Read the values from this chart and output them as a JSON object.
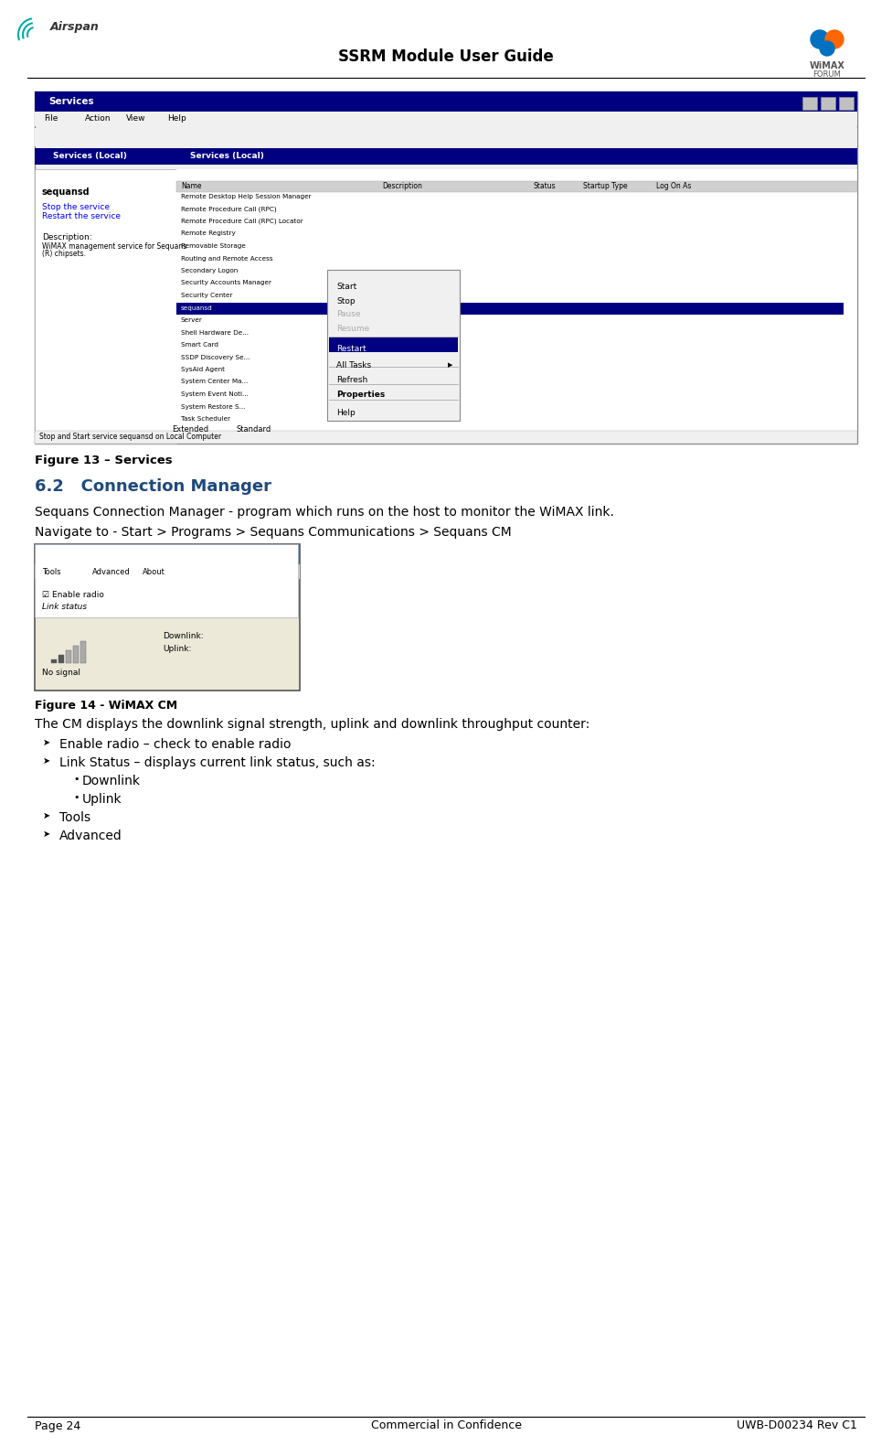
{
  "title": "SSRM Module User Guide",
  "page_num": "Page 24",
  "confidential": "Commercial in Confidence",
  "doc_ref": "UWB-D00234 Rev C1",
  "fig13_caption": "Figure 13 – Services",
  "section_num": "6.2",
  "section_title": "Connection Manager",
  "section_title_color": "#1F497D",
  "para1": "Sequans Connection Manager - program which runs on the host to monitor the WiMAX link.",
  "para2": "Navigate to - Start > Programs > Sequans Communications > Sequans CM",
  "fig14_caption": "Figure 14 - WiMAX CM",
  "para3": "The CM displays the downlink signal strength, uplink and downlink throughput counter:",
  "bullets": [
    {
      "level": 1,
      "text": "Enable radio – check to enable radio"
    },
    {
      "level": 1,
      "text": "Link Status – displays current link status, such as:"
    },
    {
      "level": 2,
      "text": "Downlink"
    },
    {
      "level": 2,
      "text": "Uplink"
    },
    {
      "level": 1,
      "text": "Tools"
    },
    {
      "level": 1,
      "text": "Advanced"
    }
  ],
  "header_line_color": "#000000",
  "footer_line_color": "#000000",
  "bg_color": "#ffffff",
  "text_color": "#000000",
  "body_fontsize": 10,
  "caption_fontsize": 9,
  "section_fontsize": 13
}
